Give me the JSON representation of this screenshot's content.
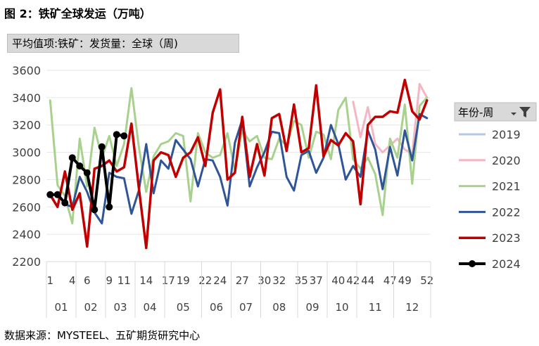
{
  "figure": {
    "title": "图 2：铁矿全球发运（万吨）",
    "pivot_field": "平均值项:铁矿：发货量：全球（周)",
    "source": "数据来源：MYSTEEL、五矿期货研究中心"
  },
  "legend": {
    "title": "年份-周",
    "filter_icon": "filter-icon"
  },
  "chart_data": {
    "type": "line",
    "title": "",
    "xlabel": "",
    "ylabel": "",
    "ylim": [
      2200,
      3600
    ],
    "yticks": [
      2200,
      2400,
      2600,
      2800,
      3000,
      3200,
      3400,
      3600
    ],
    "xlim": [
      1,
      52
    ],
    "xtick_weeks": [
      1,
      4,
      6,
      9,
      11,
      14,
      17,
      19,
      22,
      24,
      27,
      30,
      32,
      35,
      37,
      40,
      42,
      44,
      47,
      49,
      52
    ],
    "months": [
      {
        "label": "01",
        "start": 1,
        "end": 4
      },
      {
        "label": "02",
        "start": 5,
        "end": 8
      },
      {
        "label": "03",
        "start": 9,
        "end": 12
      },
      {
        "label": "04",
        "start": 13,
        "end": 16
      },
      {
        "label": "05",
        "start": 17,
        "end": 21
      },
      {
        "label": "06",
        "start": 22,
        "end": 25
      },
      {
        "label": "07",
        "start": 26,
        "end": 29
      },
      {
        "label": "08",
        "start": 30,
        "end": 34
      },
      {
        "label": "09",
        "start": 35,
        "end": 38
      },
      {
        "label": "10",
        "start": 39,
        "end": 42
      },
      {
        "label": "11",
        "start": 43,
        "end": 47
      },
      {
        "label": "12",
        "start": 48,
        "end": 52
      }
    ],
    "series": [
      {
        "name": "2019",
        "color": "#b4c7e7",
        "width": 3,
        "markers": false,
        "x": [],
        "y": []
      },
      {
        "name": "2020",
        "color": "#f4b6c2",
        "width": 3,
        "markers": false,
        "x": [
          42,
          43,
          44,
          45,
          46,
          47,
          48,
          49,
          50,
          51,
          52
        ],
        "y": [
          3370,
          3110,
          3330,
          3060,
          3000,
          3050,
          3100,
          3020,
          2990,
          3500,
          3400
        ]
      },
      {
        "name": "2021",
        "color": "#a9d18e",
        "width": 3,
        "markers": false,
        "x": [
          1,
          2,
          3,
          4,
          5,
          6,
          7,
          8,
          9,
          10,
          11,
          12,
          13,
          14,
          15,
          16,
          17,
          18,
          19,
          20,
          21,
          22,
          23,
          24,
          25,
          26,
          27,
          28,
          29,
          30,
          31,
          32,
          33,
          34,
          35,
          36,
          37,
          38,
          39,
          40,
          41,
          42,
          43,
          44,
          45,
          46,
          47,
          48,
          49,
          50,
          51,
          52
        ],
        "y": [
          3380,
          2760,
          2680,
          2480,
          3100,
          2750,
          3180,
          2960,
          3120,
          2900,
          3060,
          3470,
          3040,
          2710,
          2970,
          3060,
          3080,
          3140,
          3120,
          2640,
          3140,
          3000,
          2960,
          2980,
          3140,
          2870,
          3160,
          3080,
          3120,
          2960,
          2950,
          3100,
          3050,
          3230,
          3200,
          2960,
          3150,
          3130,
          2950,
          3310,
          3400,
          2950,
          2880,
          2960,
          2840,
          2540,
          3100,
          2960,
          3350,
          2770,
          3340,
          3400
        ]
      },
      {
        "name": "2022",
        "color": "#2f5597",
        "width": 3,
        "markers": false,
        "x": [
          1,
          2,
          3,
          4,
          5,
          6,
          7,
          8,
          9,
          10,
          11,
          12,
          13,
          14,
          15,
          16,
          17,
          18,
          19,
          20,
          21,
          22,
          23,
          24,
          25,
          26,
          27,
          28,
          29,
          30,
          31,
          32,
          33,
          34,
          35,
          36,
          37,
          38,
          39,
          40,
          41,
          42,
          43,
          44,
          45,
          46,
          47,
          48,
          49,
          50,
          51,
          52
        ],
        "y": [
          2680,
          2700,
          2620,
          2600,
          2820,
          2710,
          2560,
          2480,
          2850,
          2820,
          2810,
          2550,
          2720,
          3060,
          2700,
          2940,
          2880,
          3090,
          3020,
          2950,
          2750,
          2950,
          2940,
          2820,
          2610,
          3070,
          3240,
          2750,
          2890,
          3000,
          3150,
          3140,
          2820,
          2720,
          2980,
          3010,
          2850,
          2960,
          3200,
          3060,
          2800,
          2900,
          2820,
          3160,
          3020,
          2730,
          3040,
          2830,
          3160,
          2940,
          3280,
          3250
        ]
      },
      {
        "name": "2023",
        "color": "#c00000",
        "width": 3.5,
        "markers": false,
        "x": [
          1,
          2,
          3,
          4,
          5,
          6,
          7,
          8,
          9,
          10,
          11,
          12,
          13,
          14,
          15,
          16,
          17,
          18,
          19,
          20,
          21,
          22,
          23,
          24,
          25,
          26,
          27,
          28,
          29,
          30,
          31,
          32,
          33,
          34,
          35,
          36,
          37,
          38,
          39,
          40,
          41,
          42,
          43,
          44,
          45,
          46,
          47,
          48,
          49,
          50,
          51,
          52
        ],
        "y": [
          2690,
          2600,
          2860,
          2580,
          2700,
          2310,
          2880,
          2900,
          2940,
          2860,
          2890,
          3210,
          2740,
          2300,
          2940,
          3000,
          2980,
          2820,
          2960,
          3000,
          3110,
          2900,
          3290,
          3460,
          2800,
          2850,
          3260,
          2820,
          3060,
          2830,
          3250,
          3280,
          3010,
          3350,
          3000,
          3030,
          3490,
          2970,
          3090,
          3050,
          3140,
          3080,
          2620,
          3200,
          3260,
          3260,
          3300,
          3290,
          3530,
          3300,
          3240,
          3380
        ]
      },
      {
        "name": "2024",
        "color": "#000000",
        "width": 4,
        "markers": true,
        "x": [
          1,
          2,
          3,
          4,
          5,
          6,
          7,
          8,
          9,
          10,
          11
        ],
        "y": [
          2690,
          2690,
          2630,
          2960,
          2900,
          2850,
          2580,
          3040,
          2600,
          3130,
          3120
        ]
      }
    ]
  }
}
